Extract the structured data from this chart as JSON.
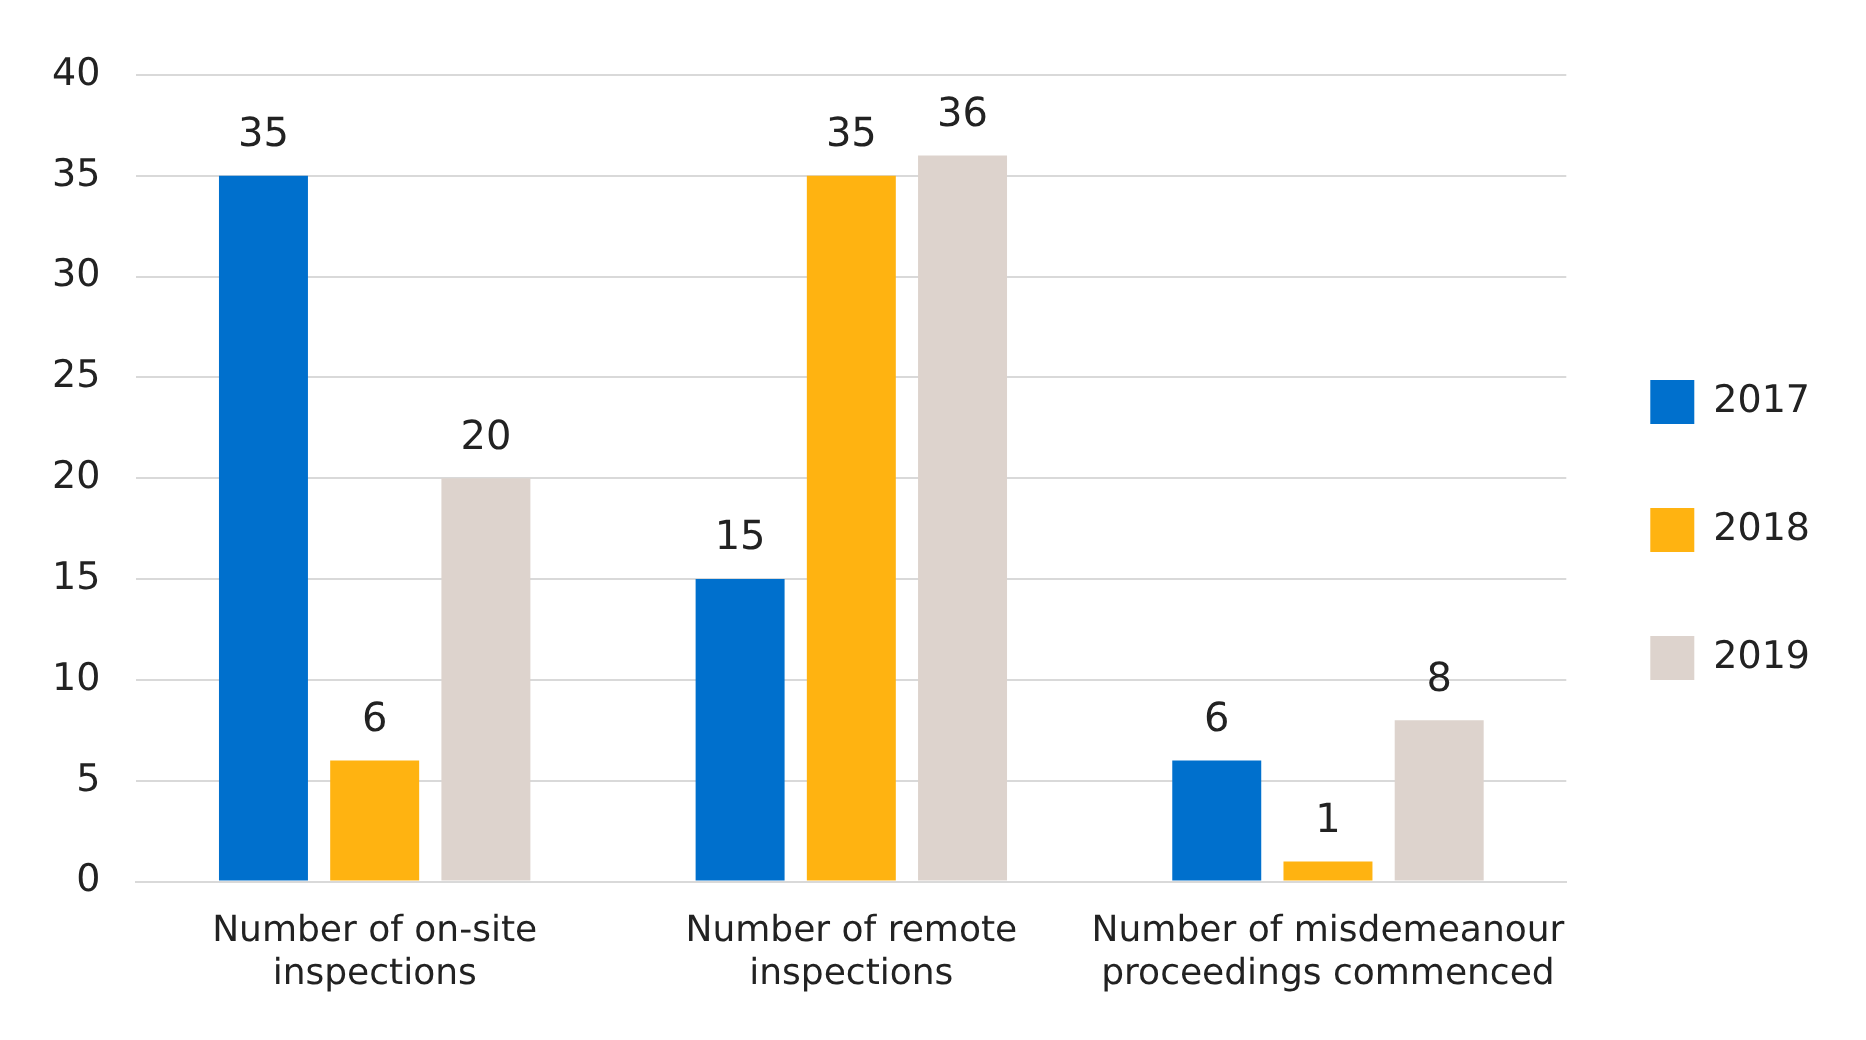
{
  "chart_data": {
    "type": "bar",
    "categories": [
      "Number of on-site inspections",
      "Number of remote inspections",
      "Number of misdemeanour proceedings commenced"
    ],
    "series": [
      {
        "name": "2017",
        "color": "#0070cd",
        "values": [
          35,
          15,
          6
        ]
      },
      {
        "name": "2018",
        "color": "#ffb311",
        "values": [
          6,
          35,
          1
        ]
      },
      {
        "name": "2019",
        "color": "#ddd3cd",
        "values": [
          20,
          36,
          8
        ]
      }
    ],
    "ylim": [
      0,
      40
    ],
    "yticks": [
      0,
      5,
      10,
      15,
      20,
      25,
      30,
      35,
      40
    ],
    "grid": "y",
    "legend": "right",
    "data_labels": true
  }
}
